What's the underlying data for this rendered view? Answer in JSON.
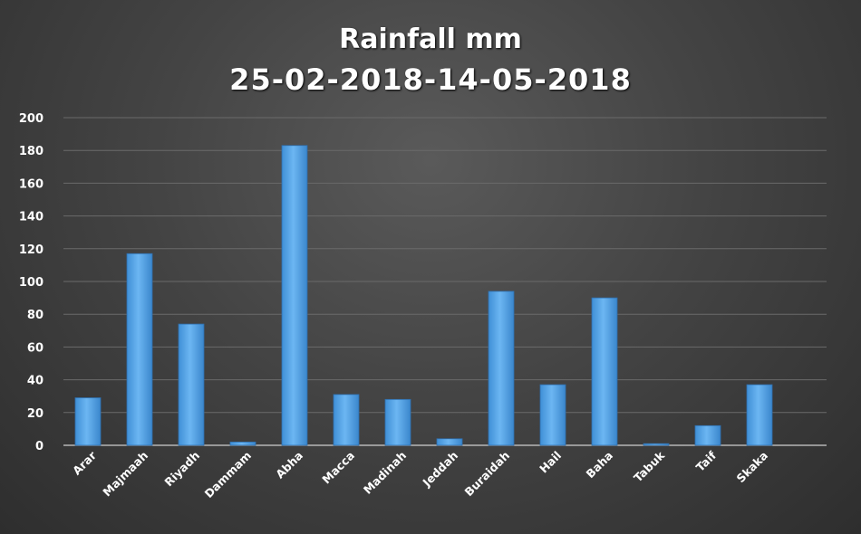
{
  "chart_data": {
    "type": "bar",
    "title": "Rainfall mm",
    "subtitle": "25-02-2018-14-05-2018",
    "categories": [
      "Arar",
      "Majmaah",
      "Riyadh",
      "Dammam",
      "Abha",
      "Macca",
      "Madinah",
      "Jeddah",
      "Buraidah",
      "Hail",
      "Baha",
      "Tabuk",
      "Taif",
      "Skaka"
    ],
    "values": [
      29,
      117,
      74,
      2,
      183,
      31,
      28,
      4,
      94,
      37,
      90,
      1,
      12,
      37
    ],
    "yticks": [
      "0",
      "20",
      "40",
      "60",
      "80",
      "100",
      "120",
      "140",
      "160",
      "180",
      "200"
    ],
    "ylim": [
      0,
      200
    ],
    "grid": true,
    "bar_color": "#5aa9ec",
    "background_color": "#3f3f3f"
  }
}
